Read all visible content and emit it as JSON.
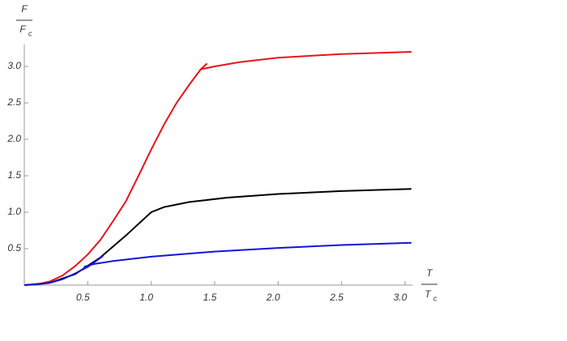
{
  "chart_data": {
    "type": "line",
    "ylabel": {
      "numerator": "F",
      "denominator": "F",
      "subscript": "c"
    },
    "xlabel": {
      "numerator": "T",
      "denominator": "T",
      "subscript": "c"
    },
    "xlim": [
      0,
      3.06
    ],
    "ylim": [
      0,
      3.3
    ],
    "xticks": [
      0.5,
      {
        "value": 1,
        "label": "1.0"
      },
      1.5,
      {
        "value": 2,
        "label": "2.0"
      },
      2.5,
      {
        "value": 3,
        "label": "3.0"
      }
    ],
    "yticks": [
      0.5,
      {
        "value": 1,
        "label": "1.0"
      },
      1.5,
      {
        "value": 2,
        "label": "2.0"
      },
      2.5,
      {
        "value": 3,
        "label": "3.0"
      }
    ],
    "series": [
      {
        "color": "#e8141b",
        "x": [
          0,
          0.1,
          0.2,
          0.3,
          0.4,
          0.5,
          0.6,
          0.7,
          0.8,
          0.9,
          1.0,
          1.1,
          1.2,
          1.3,
          1.39,
          1.44,
          null,
          1.39,
          1.5,
          1.7,
          2.0,
          2.5,
          3.05
        ],
        "values": [
          0,
          0.01,
          0.05,
          0.13,
          0.26,
          0.42,
          0.62,
          0.88,
          1.15,
          1.5,
          1.86,
          2.2,
          2.5,
          2.75,
          2.96,
          3.04,
          null,
          2.96,
          3.0,
          3.06,
          3.12,
          3.17,
          3.2
        ]
      },
      {
        "color": "#000000",
        "x": [
          0,
          0.2,
          0.4,
          0.6,
          0.8,
          1.0,
          1.1,
          1.3,
          1.6,
          2.0,
          2.5,
          3.05
        ],
        "values": [
          0,
          0.03,
          0.15,
          0.38,
          0.68,
          1.0,
          1.07,
          1.14,
          1.2,
          1.25,
          1.29,
          1.32
        ]
      },
      {
        "color": "#1414d9",
        "x": [
          0,
          0.1,
          0.2,
          0.3,
          0.4,
          0.5,
          0.62,
          null,
          0.47,
          0.55,
          0.7,
          1.0,
          1.5,
          2.0,
          2.5,
          3.05
        ],
        "values": [
          0,
          0.01,
          0.03,
          0.08,
          0.16,
          0.25,
          0.4,
          null,
          0.25,
          0.29,
          0.33,
          0.39,
          0.46,
          0.51,
          0.55,
          0.58
        ]
      }
    ]
  }
}
